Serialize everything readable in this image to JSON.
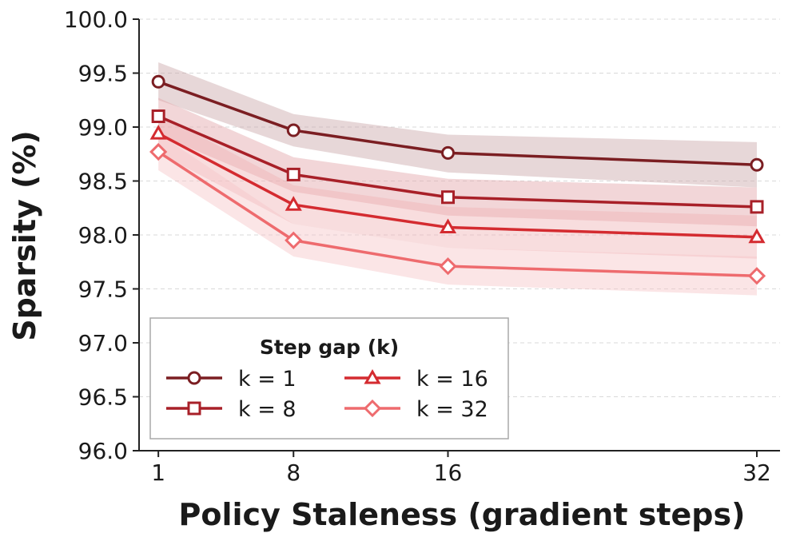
{
  "chart_data": {
    "type": "line",
    "xlabel": "Policy Staleness (gradient steps)",
    "ylabel": "Sparsity (%)",
    "x": [
      1,
      8,
      16,
      32
    ],
    "x_tick_labels": [
      "1",
      "8",
      "16",
      "32"
    ],
    "ylim": [
      96.0,
      100.0
    ],
    "y_ticks": [
      96.0,
      96.5,
      97.0,
      97.5,
      98.0,
      98.5,
      99.0,
      99.5,
      100.0
    ],
    "y_tick_labels": [
      "96.0",
      "96.5",
      "97.0",
      "97.5",
      "98.0",
      "98.5",
      "99.0",
      "99.5",
      "100.0"
    ],
    "grid": "horizontal dashed",
    "legend": {
      "title": "Step gap (k)",
      "position": "lower-left",
      "columns": 2
    },
    "series": [
      {
        "name": "k = 1",
        "values": [
          99.42,
          98.97,
          98.76,
          98.65
        ],
        "lower": [
          99.25,
          98.82,
          98.58,
          98.44
        ],
        "upper": [
          99.6,
          99.12,
          98.93,
          98.86
        ],
        "color": "#7b1e22",
        "band_color": "#c9a6a8",
        "marker": "circle"
      },
      {
        "name": "k = 8",
        "values": [
          99.1,
          98.56,
          98.35,
          98.26
        ],
        "lower": [
          98.93,
          98.4,
          98.18,
          98.08
        ],
        "upper": [
          99.27,
          98.72,
          98.52,
          98.44
        ],
        "color": "#a82028",
        "band_color": "#e3a4a8",
        "marker": "square"
      },
      {
        "name": "k = 16",
        "values": [
          98.94,
          98.28,
          98.07,
          97.98
        ],
        "lower": [
          98.76,
          98.1,
          97.88,
          97.78
        ],
        "upper": [
          99.12,
          98.46,
          98.26,
          98.18
        ],
        "color": "#d42b30",
        "band_color": "#f0b3b5",
        "marker": "triangle"
      },
      {
        "name": "k = 32",
        "values": [
          98.77,
          97.95,
          97.71,
          97.62
        ],
        "lower": [
          98.6,
          97.8,
          97.54,
          97.44
        ],
        "upper": [
          98.94,
          98.1,
          97.88,
          97.8
        ],
        "color": "#ee6b6e",
        "band_color": "#f7c6c7",
        "marker": "diamond"
      }
    ]
  }
}
